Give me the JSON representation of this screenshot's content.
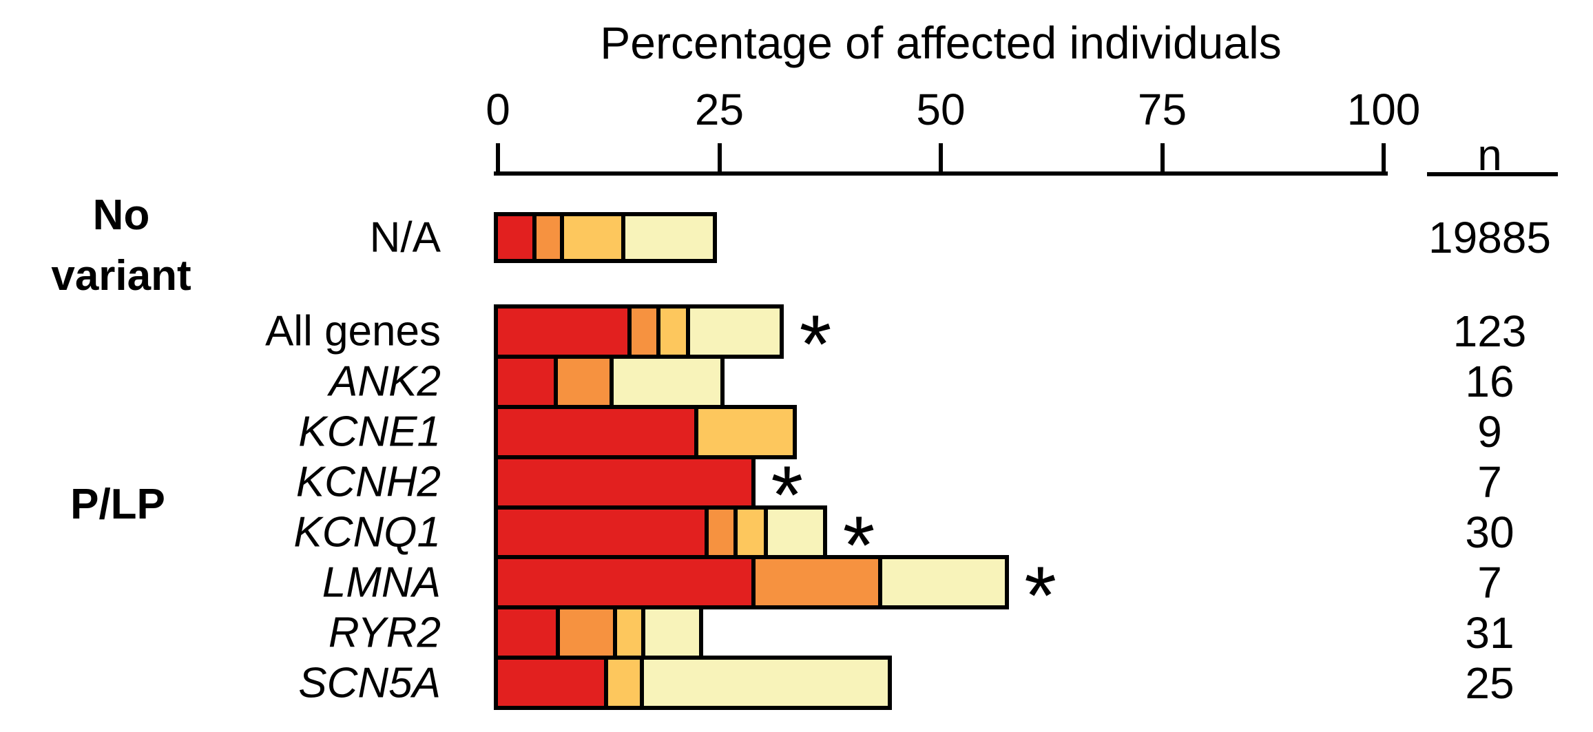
{
  "title": "Percentage of affected individuals",
  "n_column": {
    "header": "n"
  },
  "significance_marker": "*",
  "groups": [
    {
      "name": "No variant",
      "lines": [
        "No",
        "variant"
      ]
    },
    {
      "name": "P/LP",
      "lines": [
        "P/LP"
      ]
    }
  ],
  "colors": {
    "red": "#e2201f",
    "orange": "#f69240",
    "gold": "#fdc75d",
    "pale": "#f8f3ba",
    "outline": "#000000"
  },
  "chart_data": {
    "type": "bar",
    "orientation": "horizontal",
    "stacked": true,
    "title": "Percentage of affected individuals",
    "xlabel": "Percentage of affected individuals",
    "xlim": [
      0,
      100
    ],
    "x_ticks": [
      0,
      25,
      50,
      75,
      100
    ],
    "grid": false,
    "legend": false,
    "series_names": [
      "red",
      "orange",
      "gold",
      "pale"
    ],
    "rows": [
      {
        "group": "No variant",
        "label": "N/A",
        "italic": false,
        "n": 19885,
        "asterisk": false,
        "segments": [
          {
            "color": "red",
            "pct": 3.9
          },
          {
            "color": "orange",
            "pct": 3.1
          },
          {
            "color": "gold",
            "pct": 6.9
          },
          {
            "color": "pale",
            "pct": 10.4
          }
        ]
      },
      {
        "group": "P/LP",
        "label": "All genes",
        "italic": false,
        "n": 123,
        "asterisk": true,
        "segments": [
          {
            "color": "red",
            "pct": 14.6
          },
          {
            "color": "orange",
            "pct": 3.3
          },
          {
            "color": "gold",
            "pct": 3.3
          },
          {
            "color": "pale",
            "pct": 10.6
          }
        ]
      },
      {
        "group": "P/LP",
        "label": "ANK2",
        "italic": true,
        "n": 16,
        "asterisk": false,
        "segments": [
          {
            "color": "red",
            "pct": 6.3
          },
          {
            "color": "orange",
            "pct": 6.3
          },
          {
            "color": "pale",
            "pct": 12.5
          }
        ]
      },
      {
        "group": "P/LP",
        "label": "KCNE1",
        "italic": true,
        "n": 9,
        "asterisk": false,
        "segments": [
          {
            "color": "red",
            "pct": 22.2
          },
          {
            "color": "gold",
            "pct": 11.1
          }
        ]
      },
      {
        "group": "P/LP",
        "label": "KCNH2",
        "italic": true,
        "n": 7,
        "asterisk": true,
        "segments": [
          {
            "color": "red",
            "pct": 28.6
          }
        ]
      },
      {
        "group": "P/LP",
        "label": "KCNQ1",
        "italic": true,
        "n": 30,
        "asterisk": true,
        "segments": [
          {
            "color": "red",
            "pct": 23.3
          },
          {
            "color": "orange",
            "pct": 3.3
          },
          {
            "color": "gold",
            "pct": 3.4
          },
          {
            "color": "pale",
            "pct": 6.7
          }
        ]
      },
      {
        "group": "P/LP",
        "label": "LMNA",
        "italic": true,
        "n": 7,
        "asterisk": true,
        "segments": [
          {
            "color": "red",
            "pct": 28.6
          },
          {
            "color": "orange",
            "pct": 14.3
          },
          {
            "color": "pale",
            "pct": 14.3
          }
        ]
      },
      {
        "group": "P/LP",
        "label": "RYR2",
        "italic": true,
        "n": 31,
        "asterisk": false,
        "segments": [
          {
            "color": "red",
            "pct": 6.5
          },
          {
            "color": "orange",
            "pct": 6.5
          },
          {
            "color": "gold",
            "pct": 3.2
          },
          {
            "color": "pale",
            "pct": 6.5
          }
        ]
      },
      {
        "group": "P/LP",
        "label": "SCN5A",
        "italic": true,
        "n": 25,
        "asterisk": false,
        "segments": [
          {
            "color": "red",
            "pct": 12.0
          },
          {
            "color": "gold",
            "pct": 4.0
          },
          {
            "color": "pale",
            "pct": 28.0
          }
        ]
      }
    ]
  }
}
